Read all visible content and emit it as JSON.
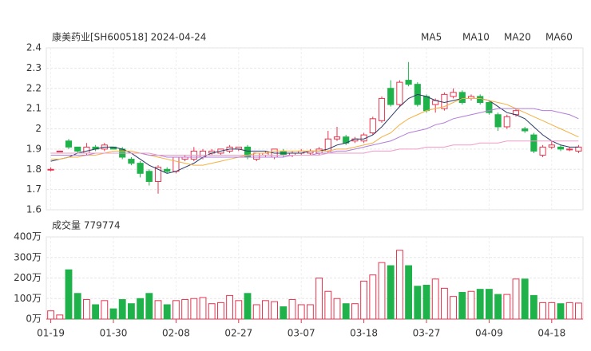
{
  "chart_data": [
    {
      "type": "candlestick",
      "title": "康美药业[SH600518] 2024-04-24",
      "up_color": "#e8344e",
      "down_color": "#1fb24a",
      "open": [
        1.8,
        1.89,
        1.94,
        1.91,
        1.88,
        1.91,
        1.9,
        1.91,
        1.9,
        1.85,
        1.83,
        1.79,
        1.74,
        1.8,
        1.79,
        1.85,
        1.85,
        1.86,
        1.88,
        1.88,
        1.89,
        1.9,
        1.91,
        1.85,
        1.87,
        1.86,
        1.89,
        1.87,
        1.88,
        1.88,
        1.88,
        1.89,
        1.95,
        1.96,
        1.94,
        1.94,
        1.98,
        2.04,
        2.2,
        2.12,
        2.24,
        2.22,
        2.16,
        2.12,
        2.1,
        2.16,
        2.18,
        2.15,
        2.16,
        2.13,
        2.07,
        2.01,
        2.07,
        2.0,
        1.97,
        1.87,
        1.91,
        1.91,
        1.9,
        1.89
      ],
      "high": [
        1.81,
        1.89,
        1.95,
        1.91,
        1.93,
        1.92,
        1.93,
        1.91,
        1.91,
        1.86,
        1.84,
        1.8,
        1.82,
        1.81,
        1.86,
        1.87,
        1.91,
        1.9,
        1.9,
        1.9,
        1.92,
        1.91,
        1.92,
        1.88,
        1.89,
        1.9,
        1.9,
        1.89,
        1.9,
        1.9,
        1.91,
        1.99,
        2.01,
        1.97,
        1.96,
        1.98,
        2.06,
        2.16,
        2.24,
        2.24,
        2.33,
        2.23,
        2.17,
        2.15,
        2.18,
        2.2,
        2.19,
        2.17,
        2.17,
        2.14,
        2.08,
        2.07,
        2.1,
        2.01,
        1.98,
        1.92,
        1.94,
        1.92,
        1.91,
        1.92
      ],
      "low": [
        1.79,
        1.89,
        1.9,
        1.88,
        1.87,
        1.89,
        1.89,
        1.9,
        1.85,
        1.82,
        1.76,
        1.72,
        1.68,
        1.78,
        1.78,
        1.84,
        1.84,
        1.85,
        1.87,
        1.87,
        1.88,
        1.89,
        1.85,
        1.84,
        1.86,
        1.85,
        1.86,
        1.86,
        1.87,
        1.87,
        1.87,
        1.88,
        1.94,
        1.92,
        1.93,
        1.93,
        1.97,
        2.03,
        2.11,
        2.11,
        2.21,
        2.11,
        2.08,
        2.08,
        2.09,
        2.15,
        2.12,
        2.14,
        2.12,
        2.07,
        1.99,
        2.0,
        2.06,
        1.98,
        1.88,
        1.86,
        1.9,
        1.89,
        1.89,
        1.88
      ],
      "close": [
        1.8,
        1.89,
        1.91,
        1.89,
        1.91,
        1.9,
        1.92,
        1.9,
        1.86,
        1.83,
        1.78,
        1.74,
        1.81,
        1.79,
        1.86,
        1.86,
        1.89,
        1.89,
        1.89,
        1.9,
        1.91,
        1.91,
        1.86,
        1.88,
        1.88,
        1.9,
        1.87,
        1.88,
        1.89,
        1.89,
        1.9,
        1.95,
        1.96,
        1.93,
        1.95,
        1.97,
        2.05,
        2.15,
        2.12,
        2.23,
        2.22,
        2.12,
        2.09,
        2.14,
        2.17,
        2.18,
        2.13,
        2.16,
        2.13,
        2.08,
        2.01,
        2.06,
        2.09,
        1.99,
        1.89,
        1.91,
        1.92,
        1.9,
        1.9,
        1.91
      ],
      "series": [
        {
          "name": "MA5",
          "color": "#2b3a67",
          "values": [
            1.84,
            1.85,
            1.86,
            1.88,
            1.89,
            1.9,
            1.91,
            1.91,
            1.9,
            1.88,
            1.85,
            1.82,
            1.8,
            1.78,
            1.79,
            1.81,
            1.83,
            1.86,
            1.88,
            1.89,
            1.9,
            1.9,
            1.89,
            1.89,
            1.89,
            1.88,
            1.88,
            1.88,
            1.88,
            1.89,
            1.89,
            1.9,
            1.92,
            1.93,
            1.95,
            1.95,
            1.97,
            2.01,
            2.06,
            2.11,
            2.15,
            2.17,
            2.16,
            2.14,
            2.13,
            2.14,
            2.15,
            2.15,
            2.15,
            2.14,
            2.11,
            2.08,
            2.07,
            2.05,
            2.01,
            1.97,
            1.94,
            1.92,
            1.91,
            1.91
          ]
        },
        {
          "name": "MA10",
          "color": "#f5b042",
          "values": [
            1.85,
            1.85,
            1.86,
            1.86,
            1.87,
            1.87,
            1.88,
            1.89,
            1.89,
            1.89,
            1.88,
            1.87,
            1.86,
            1.85,
            1.84,
            1.83,
            1.82,
            1.82,
            1.83,
            1.84,
            1.85,
            1.86,
            1.87,
            1.88,
            1.88,
            1.89,
            1.89,
            1.89,
            1.89,
            1.89,
            1.89,
            1.89,
            1.9,
            1.9,
            1.91,
            1.92,
            1.93,
            1.96,
            1.98,
            2.02,
            2.05,
            2.07,
            2.09,
            2.1,
            2.11,
            2.13,
            2.15,
            2.15,
            2.15,
            2.14,
            2.13,
            2.12,
            2.1,
            2.08,
            2.06,
            2.04,
            2.02,
            2.0,
            1.98,
            1.96
          ]
        },
        {
          "name": "MA20",
          "color": "#b07ddb",
          "values": [
            1.87,
            1.87,
            1.87,
            1.87,
            1.87,
            1.88,
            1.88,
            1.88,
            1.88,
            1.88,
            1.88,
            1.87,
            1.87,
            1.86,
            1.86,
            1.86,
            1.86,
            1.86,
            1.86,
            1.86,
            1.86,
            1.86,
            1.86,
            1.86,
            1.86,
            1.86,
            1.86,
            1.87,
            1.87,
            1.87,
            1.88,
            1.88,
            1.89,
            1.89,
            1.9,
            1.91,
            1.92,
            1.93,
            1.94,
            1.96,
            1.98,
            1.99,
            2.0,
            2.02,
            2.03,
            2.05,
            2.06,
            2.07,
            2.08,
            2.09,
            2.1,
            2.1,
            2.1,
            2.1,
            2.1,
            2.09,
            2.09,
            2.08,
            2.07,
            2.05
          ]
        },
        {
          "name": "MA60",
          "color": "#f29ac8",
          "values": [
            1.88,
            1.88,
            1.88,
            1.88,
            1.88,
            1.88,
            1.88,
            1.88,
            1.88,
            1.88,
            1.88,
            1.88,
            1.87,
            1.87,
            1.87,
            1.87,
            1.87,
            1.87,
            1.87,
            1.87,
            1.87,
            1.87,
            1.87,
            1.87,
            1.87,
            1.87,
            1.87,
            1.87,
            1.87,
            1.87,
            1.87,
            1.88,
            1.88,
            1.88,
            1.88,
            1.88,
            1.89,
            1.89,
            1.89,
            1.9,
            1.9,
            1.9,
            1.91,
            1.91,
            1.91,
            1.92,
            1.92,
            1.92,
            1.93,
            1.93,
            1.93,
            1.94,
            1.94,
            1.94,
            1.94,
            1.94,
            1.94,
            1.94,
            1.94,
            1.94
          ]
        }
      ],
      "ylim": [
        1.6,
        2.4
      ],
      "yticks": [
        1.6,
        1.7,
        1.8,
        1.9,
        2,
        2.1,
        2.2,
        2.3,
        2.4
      ],
      "grid": true
    },
    {
      "type": "bar",
      "title": "成交量 779774",
      "categories": [
        "01-19",
        null,
        null,
        null,
        null,
        null,
        null,
        "01-30",
        null,
        null,
        null,
        null,
        null,
        null,
        "02-08",
        null,
        null,
        null,
        null,
        null,
        null,
        "02-27",
        null,
        null,
        null,
        null,
        null,
        null,
        "03-07",
        null,
        null,
        null,
        null,
        null,
        null,
        "03-18",
        null,
        null,
        null,
        null,
        null,
        null,
        "03-27",
        null,
        null,
        null,
        null,
        null,
        null,
        "04-09",
        null,
        null,
        null,
        null,
        null,
        null,
        "04-18",
        null,
        null,
        null
      ],
      "values": [
        40,
        20,
        240,
        125,
        95,
        70,
        90,
        50,
        95,
        75,
        100,
        125,
        90,
        70,
        90,
        95,
        100,
        105,
        75,
        80,
        115,
        90,
        125,
        70,
        90,
        85,
        60,
        95,
        70,
        70,
        200,
        135,
        100,
        75,
        75,
        185,
        215,
        275,
        260,
        335,
        260,
        160,
        165,
        195,
        150,
        110,
        130,
        135,
        145,
        145,
        120,
        120,
        195,
        195,
        115,
        80,
        80,
        75,
        80,
        78
      ],
      "ylim": [
        0,
        400
      ],
      "yticks": [
        {
          "value": 0,
          "label": "0万"
        },
        {
          "value": 100,
          "label": "100万"
        },
        {
          "value": 200,
          "label": "200万"
        },
        {
          "value": 300,
          "label": "300万"
        },
        {
          "value": 400,
          "label": "400万"
        }
      ],
      "grid": true
    }
  ]
}
